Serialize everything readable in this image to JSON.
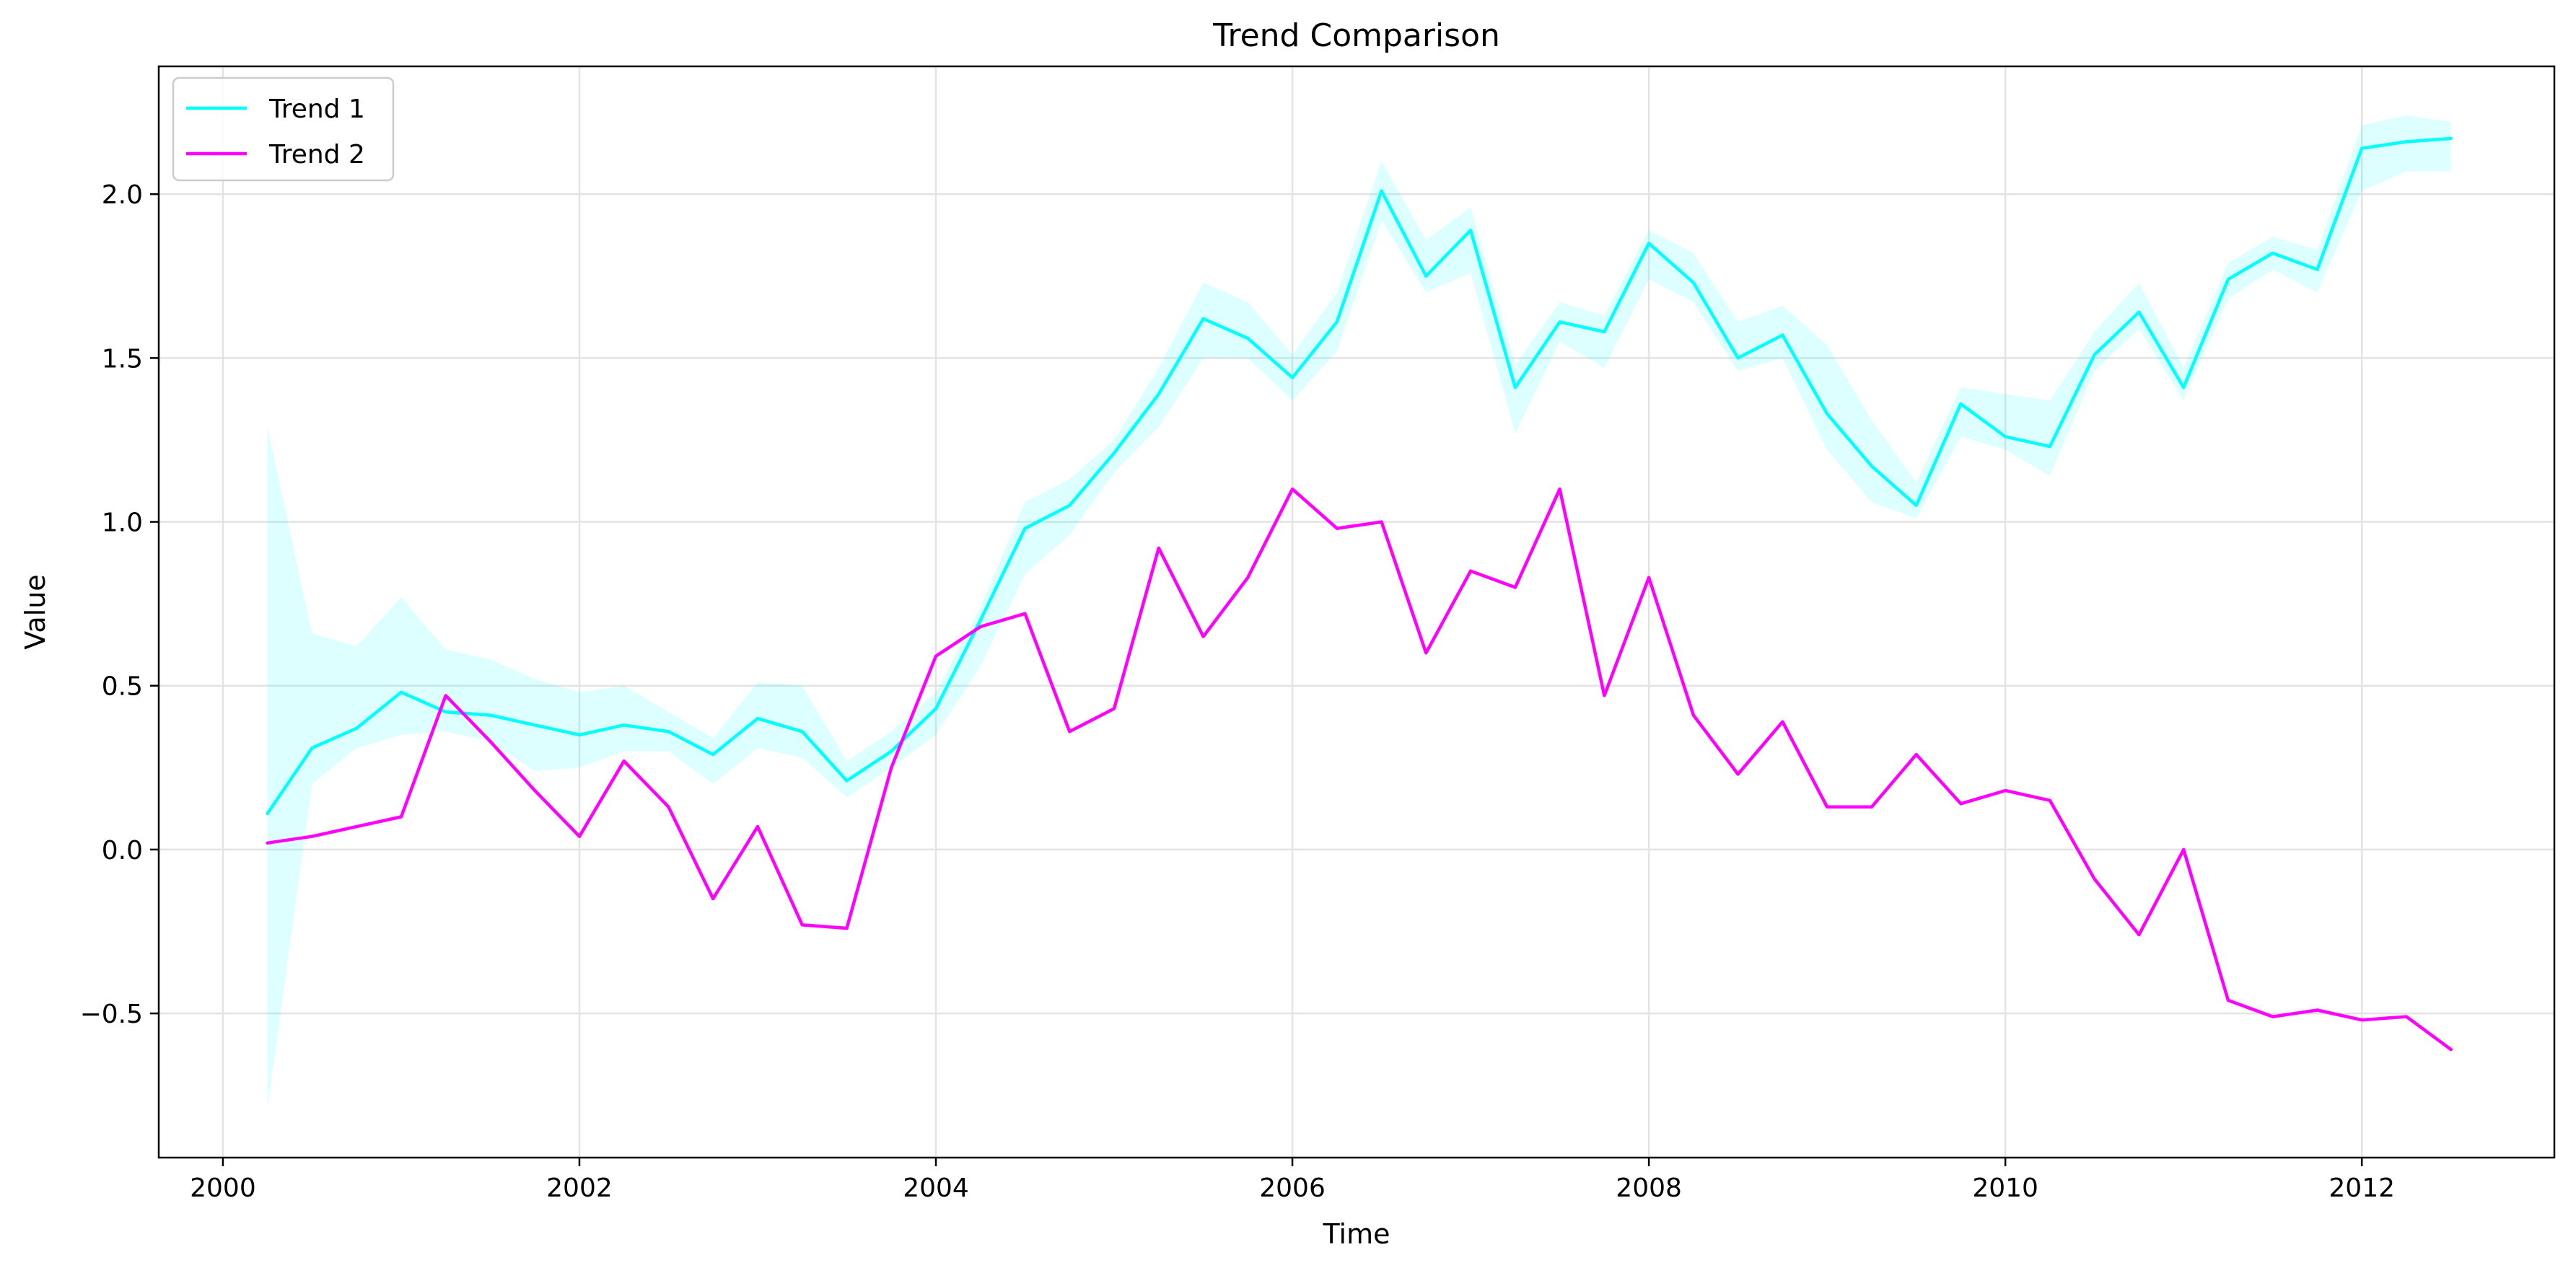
{
  "chart_data": {
    "type": "line",
    "title": "Trend Comparison",
    "xlabel": "Time",
    "ylabel": "Value",
    "xlim": [
      1999.64,
      2013.08
    ],
    "ylim": [
      -0.94,
      2.39
    ],
    "xticks": [
      2000,
      2002,
      2004,
      2006,
      2008,
      2010,
      2012
    ],
    "xtick_labels": [
      "2000",
      "2002",
      "2004",
      "2006",
      "2008",
      "2010",
      "2012"
    ],
    "yticks": [
      -0.5,
      0.0,
      0.5,
      1.0,
      1.5,
      2.0
    ],
    "ytick_labels": [
      "−0.5",
      "0.0",
      "0.5",
      "1.0",
      "1.5",
      "2.0"
    ],
    "grid": true,
    "legend_position": "top-left",
    "x": [
      "2000-04-01",
      "2000-07-01",
      "2000-10-01",
      "2001-01-01",
      "2001-04-01",
      "2001-07-01",
      "2001-10-01",
      "2002-01-01",
      "2002-04-01",
      "2002-07-01",
      "2002-10-01",
      "2003-01-01",
      "2003-04-01",
      "2003-07-01",
      "2003-10-01",
      "2004-01-01",
      "2004-04-01",
      "2004-07-01",
      "2004-10-01",
      "2005-01-01",
      "2005-04-01",
      "2005-07-01",
      "2005-10-01",
      "2006-01-01",
      "2006-04-01",
      "2006-07-01",
      "2006-10-01",
      "2007-01-01",
      "2007-04-01",
      "2007-07-01",
      "2007-10-01",
      "2008-01-01",
      "2008-04-01",
      "2008-07-01",
      "2008-10-01",
      "2009-01-01",
      "2009-04-01",
      "2009-07-01",
      "2009-10-01",
      "2010-01-01",
      "2010-04-01",
      "2010-07-01",
      "2010-10-01",
      "2011-01-01",
      "2011-04-01",
      "2011-07-01",
      "2011-10-01",
      "2012-01-01",
      "2012-04-01",
      "2012-07-01"
    ],
    "series": [
      {
        "name": "Trend 1",
        "color": "#00ffff",
        "values": [
          0.11,
          0.31,
          0.37,
          0.48,
          0.42,
          0.41,
          0.38,
          0.35,
          0.38,
          0.36,
          0.29,
          0.4,
          0.36,
          0.21,
          0.3,
          0.43,
          0.7,
          0.98,
          1.05,
          1.21,
          1.39,
          1.62,
          1.56,
          1.44,
          1.61,
          2.01,
          1.75,
          1.89,
          1.41,
          1.61,
          1.58,
          1.85,
          1.73,
          1.5,
          1.57,
          1.33,
          1.17,
          1.05,
          1.36,
          1.26,
          1.23,
          1.51,
          1.64,
          1.41,
          1.74,
          1.82,
          1.77,
          2.14,
          2.16,
          2.17
        ],
        "band_lower": [
          -0.79,
          0.2,
          0.31,
          0.35,
          0.36,
          0.33,
          0.24,
          0.25,
          0.3,
          0.3,
          0.2,
          0.31,
          0.28,
          0.16,
          0.25,
          0.35,
          0.56,
          0.84,
          0.96,
          1.15,
          1.29,
          1.5,
          1.5,
          1.37,
          1.52,
          1.92,
          1.7,
          1.76,
          1.27,
          1.55,
          1.47,
          1.74,
          1.67,
          1.46,
          1.5,
          1.22,
          1.06,
          1.01,
          1.26,
          1.22,
          1.14,
          1.46,
          1.59,
          1.37,
          1.68,
          1.77,
          1.7,
          2.01,
          2.07,
          2.07
        ],
        "band_upper": [
          1.29,
          0.66,
          0.62,
          0.77,
          0.61,
          0.58,
          0.52,
          0.48,
          0.5,
          0.42,
          0.34,
          0.51,
          0.5,
          0.27,
          0.36,
          0.48,
          0.74,
          1.06,
          1.13,
          1.25,
          1.47,
          1.73,
          1.67,
          1.51,
          1.7,
          2.1,
          1.86,
          1.96,
          1.48,
          1.67,
          1.63,
          1.89,
          1.82,
          1.61,
          1.66,
          1.54,
          1.31,
          1.12,
          1.41,
          1.39,
          1.37,
          1.58,
          1.73,
          1.47,
          1.79,
          1.87,
          1.83,
          2.21,
          2.24,
          2.22
        ]
      },
      {
        "name": "Trend 2",
        "color": "#ff00ff",
        "values": [
          0.02,
          0.04,
          0.07,
          0.1,
          0.47,
          0.33,
          0.18,
          0.04,
          0.27,
          0.13,
          -0.15,
          0.07,
          -0.23,
          -0.24,
          0.25,
          0.59,
          0.68,
          0.72,
          0.36,
          0.43,
          0.92,
          0.65,
          0.83,
          1.1,
          0.98,
          1.0,
          0.6,
          0.85,
          0.8,
          1.1,
          0.47,
          0.83,
          0.41,
          0.23,
          0.39,
          0.13,
          0.13,
          0.29,
          0.14,
          0.18,
          0.15,
          -0.09,
          -0.26,
          0.0,
          -0.46,
          -0.51,
          -0.49,
          -0.52,
          -0.51,
          -0.61
        ]
      }
    ]
  }
}
